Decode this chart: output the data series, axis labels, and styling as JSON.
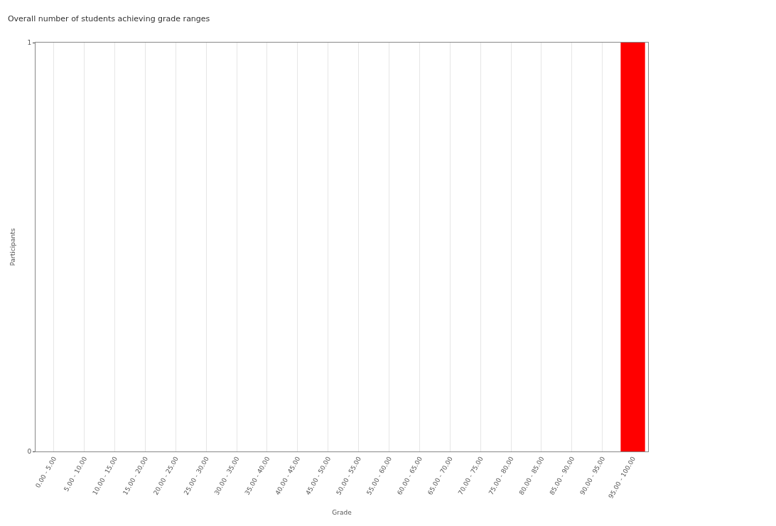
{
  "chart_data": {
    "type": "bar",
    "title": "Overall number of students achieving grade ranges",
    "xlabel": "Grade",
    "ylabel": "Participants",
    "categories": [
      "0.00 - 5.00",
      "5.00 - 10.00",
      "10.00 - 15.00",
      "15.00 - 20.00",
      "20.00 - 25.00",
      "25.00 - 30.00",
      "30.00 - 35.00",
      "35.00 - 40.00",
      "40.00 - 45.00",
      "45.00 - 50.00",
      "50.00 - 55.00",
      "55.00 - 60.00",
      "60.00 - 65.00",
      "65.00 - 70.00",
      "70.00 - 75.00",
      "75.00 - 80.00",
      "80.00 - 85.00",
      "85.00 - 90.00",
      "90.00 - 95.00",
      "95.00 - 100.00"
    ],
    "values": [
      0,
      0,
      0,
      0,
      0,
      0,
      0,
      0,
      0,
      0,
      0,
      0,
      0,
      0,
      0,
      0,
      0,
      0,
      0,
      1
    ],
    "color": "#ff0000",
    "ylim": [
      0,
      1
    ],
    "yticks": [
      0,
      1
    ],
    "grid": "x"
  }
}
